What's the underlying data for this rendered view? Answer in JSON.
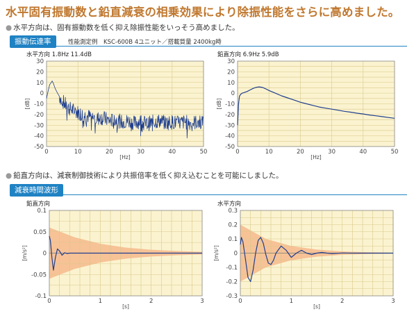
{
  "headline": "水平固有振動数と鉛直減衰の相乗効果により除振性能をさらに高めました。",
  "section1": {
    "bullet": "水平方向は、固有振動数を低く抑え除振性能をいっそう高めました。",
    "tab": "振動伝達率",
    "note": "性能測定例　KSC-600B  4ユニット／搭載質量  2400kg時"
  },
  "section2": {
    "bullet": "鉛直方向は、減衰制御技術により共振倍率を低く抑え込むことを可能にしました。",
    "tab": "減衰時間波形"
  },
  "colors": {
    "headline": "#c0782f",
    "tab_bg": "#1f82c3",
    "plot_bg": "#fbf3cf",
    "grid": "#d8c98c",
    "trace": "#1f3f8f",
    "envelope": "#f6b98c"
  },
  "chart_data": [
    {
      "type": "line",
      "id": "tr-horizontal",
      "title": "水平方向  1.8Hz  11.4dB",
      "xlabel": "[Hz]",
      "ylabel": "[dB]",
      "xlim": [
        0,
        50
      ],
      "ylim": [
        -50,
        30
      ],
      "xticks": [
        0,
        10,
        20,
        30,
        40,
        50
      ],
      "yticks": [
        30,
        20,
        10,
        0,
        -10,
        -20,
        -30,
        -40,
        -50
      ],
      "grid": true,
      "series": [
        {
          "x": [
            0,
            0.5,
            1.0,
            1.5,
            1.8,
            2.2,
            2.8,
            3.5,
            4.5,
            5.5,
            7,
            8.5,
            10,
            12,
            14,
            16,
            18,
            20,
            22,
            24,
            26,
            28,
            30,
            32,
            34,
            36,
            38,
            40,
            42,
            44,
            46,
            48,
            50
          ],
          "y": [
            -5,
            2,
            8,
            10,
            11.4,
            9,
            4,
            0,
            -5,
            -9,
            -14,
            -16,
            -18,
            -21,
            -22,
            -24,
            -23,
            -26,
            -25,
            -27,
            -26,
            -28,
            -26,
            -29,
            -27,
            -26,
            -28,
            -27,
            -28,
            -27,
            -28,
            -27,
            -28
          ]
        }
      ]
    },
    {
      "type": "line",
      "id": "tr-vertical",
      "title": "鉛直方向  6.9Hz  5.9dB",
      "xlabel": "[Hz]",
      "ylabel": "[dB]",
      "xlim": [
        0,
        50
      ],
      "ylim": [
        -50,
        30
      ],
      "xticks": [
        0,
        10,
        20,
        30,
        40,
        50
      ],
      "yticks": [
        30,
        20,
        10,
        0,
        -10,
        -20,
        -30,
        -40,
        -50
      ],
      "grid": true,
      "series": [
        {
          "x": [
            0,
            0.3,
            0.6,
            1,
            1.5,
            2,
            3,
            4,
            5,
            6,
            6.9,
            8,
            9,
            10,
            12,
            14,
            16,
            18,
            20,
            22,
            24,
            26,
            28,
            30,
            32,
            34,
            36,
            38,
            40,
            42,
            44,
            46,
            48,
            50
          ],
          "y": [
            -30,
            -10,
            -3,
            -1,
            0,
            0.5,
            1.5,
            3,
            4.5,
            5.5,
            5.9,
            5.3,
            4,
            2.5,
            0,
            -2.5,
            -4.5,
            -6.5,
            -8.5,
            -10,
            -11.5,
            -13,
            -14,
            -15,
            -16,
            -17,
            -17.8,
            -18.8,
            -19.5,
            -20.5,
            -21.2,
            -22,
            -22.8,
            -23.5
          ]
        }
      ]
    },
    {
      "type": "line",
      "id": "decay-vertical",
      "title": "鉛直方向",
      "xlabel": "[s]",
      "ylabel": "[m/s²]",
      "xlim": [
        0,
        3
      ],
      "ylim": [
        -0.1,
        0.1
      ],
      "xticks": [
        0,
        1,
        2,
        3
      ],
      "yticks": [
        0.1,
        0.05,
        0,
        -0.05,
        -0.1
      ],
      "ytick_labels": [
        "0.1",
        "0.05",
        "0",
        "-0.05",
        "-0.1"
      ],
      "grid": true,
      "envelope": {
        "x": [
          0,
          0.5,
          1,
          1.5,
          2,
          2.5,
          3
        ],
        "upper": [
          0.06,
          0.037,
          0.022,
          0.013,
          0.008,
          0.005,
          0.003
        ]
      },
      "series": [
        {
          "x": [
            0,
            0.02,
            0.05,
            0.08,
            0.12,
            0.16,
            0.2,
            0.25,
            0.3,
            0.35,
            0.4,
            0.5,
            0.7,
            1,
            1.5,
            2,
            2.5,
            3
          ],
          "y": [
            0.04,
            0.03,
            -0.01,
            -0.04,
            -0.01,
            0.01,
            0.005,
            -0.005,
            0.001,
            -0.001,
            0,
            0,
            0,
            0,
            0,
            0,
            0,
            0
          ]
        }
      ]
    },
    {
      "type": "line",
      "id": "decay-horizontal",
      "title": "水平方向",
      "xlabel": "[s]",
      "ylabel": "[m/s²]",
      "xlim": [
        0,
        3
      ],
      "ylim": [
        -0.3,
        0.3
      ],
      "xticks": [
        0,
        1,
        2,
        3
      ],
      "yticks": [
        0.3,
        0.2,
        0.1,
        0,
        -0.1,
        -0.2,
        -0.3
      ],
      "ytick_labels": [
        "0.3",
        "0.2",
        "0.1",
        "0",
        "-0.1",
        "-0.2",
        "-0.3"
      ],
      "grid": true,
      "envelope": {
        "x": [
          0,
          0.5,
          1,
          1.5,
          2,
          2.5,
          3
        ],
        "upper": [
          0.2,
          0.1,
          0.05,
          0.025,
          0.012,
          0.006,
          0.003
        ]
      },
      "series": [
        {
          "x": [
            0,
            0.02,
            0.05,
            0.1,
            0.15,
            0.2,
            0.25,
            0.3,
            0.35,
            0.4,
            0.45,
            0.5,
            0.55,
            0.6,
            0.65,
            0.7,
            0.8,
            0.9,
            1.0,
            1.1,
            1.2,
            1.3,
            1.4,
            1.5,
            1.6,
            1.7,
            1.8,
            2.0,
            2.2,
            2.4,
            2.6,
            2.8,
            3.0
          ],
          "y": [
            0.06,
            0.11,
            0.08,
            -0.04,
            -0.17,
            -0.2,
            -0.12,
            0,
            0.09,
            0.11,
            0.07,
            -0.01,
            -0.07,
            -0.08,
            -0.05,
            0.0,
            0.05,
            0.02,
            -0.03,
            0.0,
            0.02,
            0.0,
            -0.01,
            0.0,
            0.005,
            0.0,
            -0.003,
            0.001,
            0,
            0,
            0,
            0,
            0
          ]
        }
      ]
    }
  ]
}
